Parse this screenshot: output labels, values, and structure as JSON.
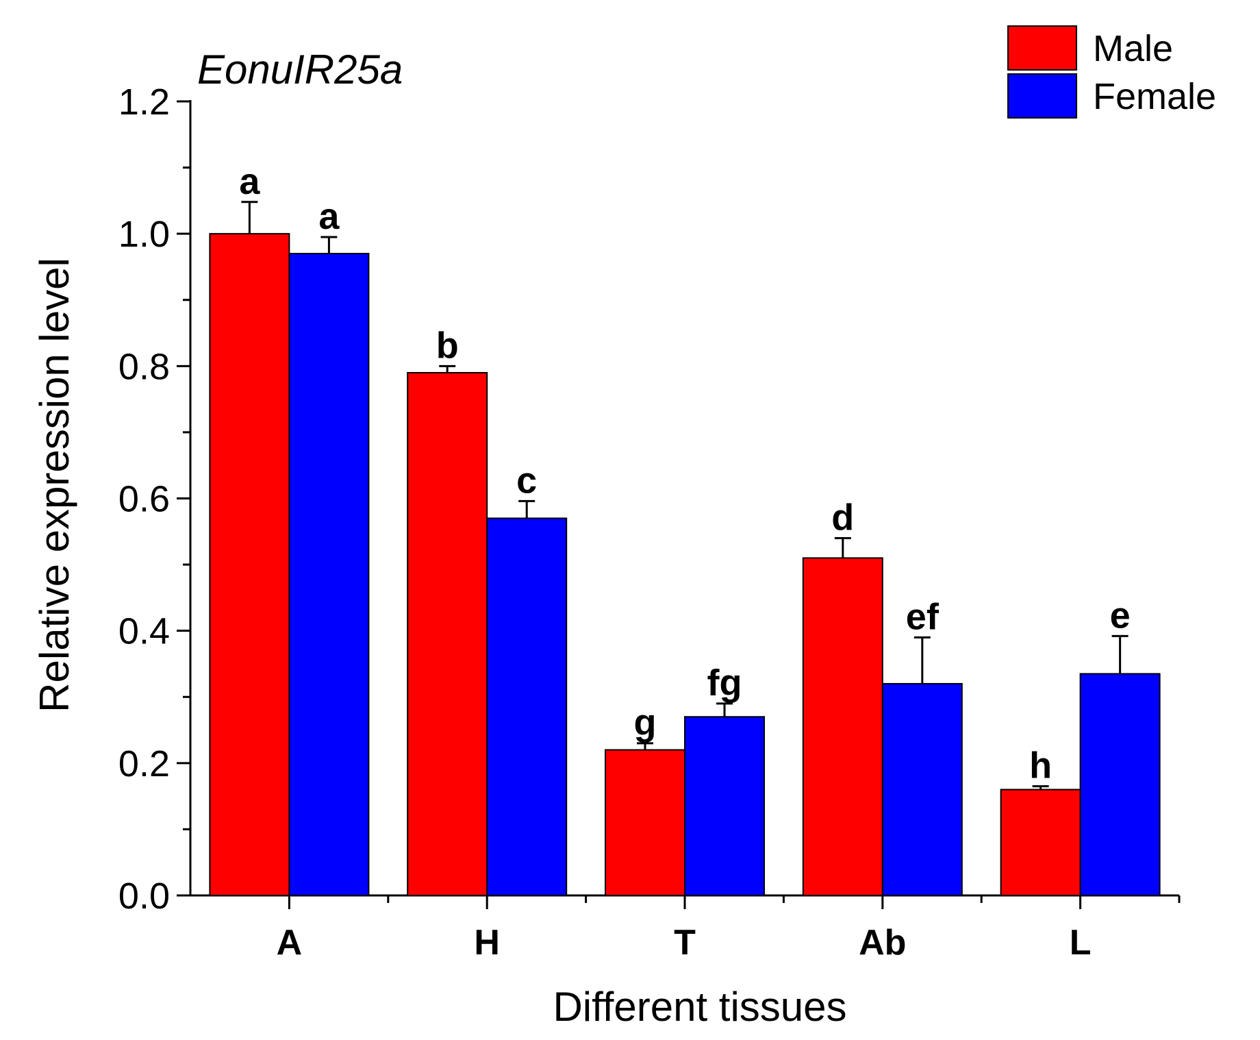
{
  "chart_data": {
    "type": "bar",
    "title": "EonuIR25a",
    "xlabel": "Different tissues",
    "ylabel": "Relative expression level",
    "ylim": [
      0,
      1.2
    ],
    "yticks": [
      "0.0",
      "0.2",
      "0.4",
      "0.6",
      "0.8",
      "1.0",
      "1.2"
    ],
    "categories": [
      "A",
      "H",
      "T",
      "Ab",
      "L"
    ],
    "legend_position": "top-right",
    "series": [
      {
        "name": "Male",
        "color": "#ff0000",
        "values": [
          1.0,
          0.79,
          0.22,
          0.51,
          0.16
        ],
        "errors": [
          0.048,
          0.01,
          0.01,
          0.03,
          0.005
        ],
        "labels": [
          "a",
          "b",
          "g",
          "d",
          "h"
        ]
      },
      {
        "name": "Female",
        "color": "#0000ff",
        "values": [
          0.97,
          0.57,
          0.27,
          0.32,
          0.335
        ],
        "errors": [
          0.025,
          0.026,
          0.02,
          0.07,
          0.057
        ],
        "labels": [
          "a",
          "c",
          "fg",
          "ef",
          "e"
        ]
      }
    ]
  }
}
